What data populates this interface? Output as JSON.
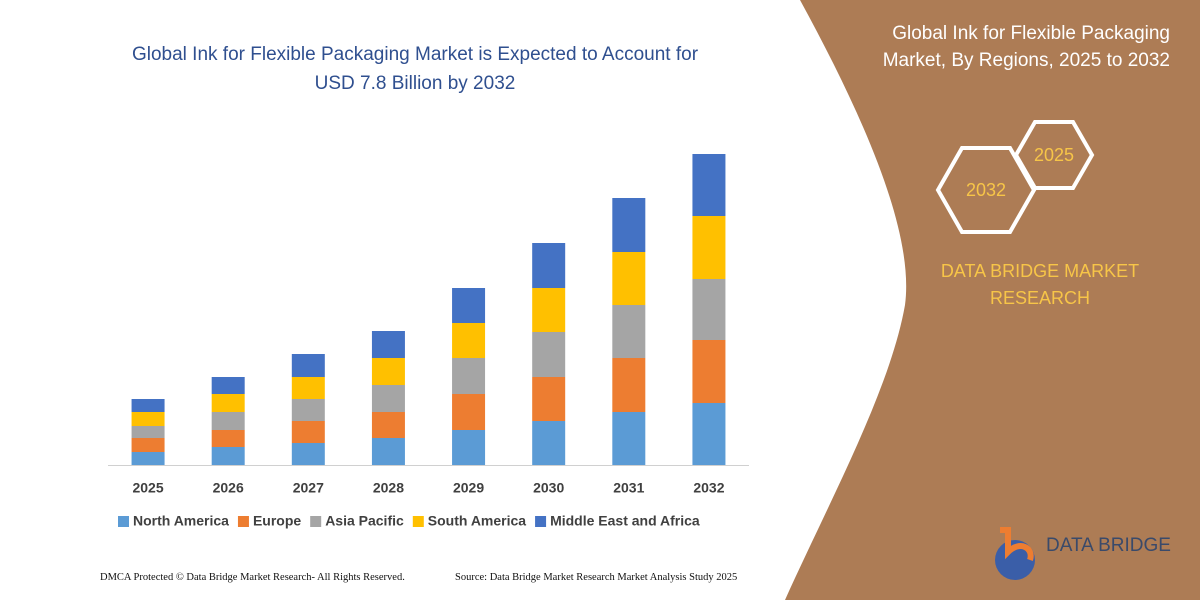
{
  "chart_data": {
    "type": "stacked_bar",
    "title": "Global Ink for Flexible Packaging Market is Expected to Account for USD 7.8 Billion by 2032",
    "categories": [
      "2025",
      "2026",
      "2027",
      "2028",
      "2029",
      "2030",
      "2031",
      "2032"
    ],
    "series": [
      {
        "name": "North America",
        "color": "#5b9bd5",
        "values": [
          13,
          18,
          22,
          27,
          35,
          44,
          53,
          62
        ]
      },
      {
        "name": "Europe",
        "color": "#ed7d31",
        "values": [
          14,
          17,
          22,
          26,
          36,
          44,
          54,
          63
        ]
      },
      {
        "name": "Asia Pacific",
        "color": "#a5a5a5",
        "values": [
          12,
          18,
          22,
          27,
          36,
          45,
          53,
          61
        ]
      },
      {
        "name": "South America",
        "color": "#ffc000",
        "values": [
          14,
          18,
          22,
          27,
          35,
          44,
          53,
          63
        ]
      },
      {
        "name": "Middle East and Africa",
        "color": "#4472c4",
        "values": [
          13,
          17,
          23,
          27,
          35,
          45,
          54,
          62
        ]
      }
    ]
  },
  "side_panel": {
    "title": "Global Ink for Flexible Packaging Market, By Regions, 2025 to 2032",
    "hexagons": [
      "2025",
      "2032"
    ],
    "brand": "DATA BRIDGE MARKET RESEARCH",
    "logo": "DATA BRIDGE"
  },
  "footer": {
    "left": "DMCA Protected © Data Bridge Market Research- All Rights Reserved.",
    "right": "Source: Data Bridge Market Research Market Analysis Study 2025"
  }
}
